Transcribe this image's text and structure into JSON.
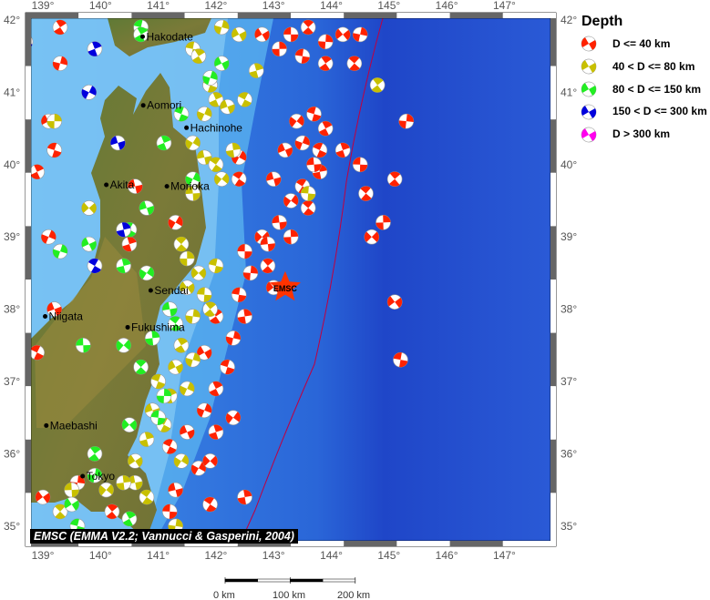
{
  "map": {
    "lon_ticks": [
      "139°",
      "140°",
      "141°",
      "142°",
      "143°",
      "144°",
      "145°",
      "146°",
      "147°"
    ],
    "lat_ticks": [
      "42°",
      "41°",
      "40°",
      "39°",
      "38°",
      "37°",
      "36°",
      "35°"
    ],
    "lon_values": [
      139,
      140,
      141,
      142,
      143,
      144,
      145,
      146,
      147
    ],
    "lat_values": [
      42,
      41,
      40,
      39,
      38,
      37,
      36,
      35
    ],
    "extent": {
      "lon": [
        138.7,
        147.9
      ],
      "lat": [
        34.75,
        42.1
      ]
    },
    "cities": [
      {
        "name": "Hakodate",
        "lon": 140.73,
        "lat": 41.77
      },
      {
        "name": "Aomori",
        "lon": 140.74,
        "lat": 40.82
      },
      {
        "name": "Hachinohe",
        "lon": 141.49,
        "lat": 40.51
      },
      {
        "name": "Akita",
        "lon": 140.1,
        "lat": 39.72
      },
      {
        "name": "Morioka",
        "lon": 141.15,
        "lat": 39.7
      },
      {
        "name": "Sendai",
        "lon": 140.87,
        "lat": 38.26
      },
      {
        "name": "Niigata",
        "lon": 139.04,
        "lat": 37.9
      },
      {
        "name": "Fukushima",
        "lon": 140.47,
        "lat": 37.75
      },
      {
        "name": "Maebashi",
        "lon": 139.06,
        "lat": 36.39
      },
      {
        "name": "Tokyo",
        "lon": 139.69,
        "lat": 35.69
      }
    ],
    "epicenter": {
      "label": "EMSC",
      "lon": 143.2,
      "lat": 38.3,
      "color": "#ff3300"
    },
    "credit": "EMSC (EMMA V2.2; Vannucci & Gasperini, 2004)"
  },
  "legend": {
    "title": "Depth",
    "items": [
      {
        "label": "D <= 40 km",
        "color": "#ff2200"
      },
      {
        "label": "40 < D <= 80 km",
        "color": "#c8c000"
      },
      {
        "label": "80 < D <= 150 km",
        "color": "#22ee22"
      },
      {
        "label": "150 < D <= 300 km",
        "color": "#0000dd"
      },
      {
        "label": "D > 300 km",
        "color": "#ff00ee"
      }
    ]
  },
  "scale": {
    "labels": [
      "0 km",
      "100 km",
      "200 km"
    ]
  },
  "events": [
    [
      143.3,
      41.8,
      0
    ],
    [
      143.6,
      41.9,
      0
    ],
    [
      143.9,
      41.7,
      0
    ],
    [
      144.2,
      41.8,
      0
    ],
    [
      143.5,
      41.5,
      0
    ],
    [
      143.9,
      41.4,
      0
    ],
    [
      144.5,
      41.8,
      0
    ],
    [
      142.8,
      41.8,
      0
    ],
    [
      143.7,
      40.7,
      0
    ],
    [
      143.9,
      40.5,
      0
    ],
    [
      143.5,
      40.3,
      0
    ],
    [
      143.2,
      40.2,
      0
    ],
    [
      143.8,
      40.2,
      0
    ],
    [
      144.2,
      40.2,
      0
    ],
    [
      142.4,
      40.1,
      0
    ],
    [
      143.0,
      39.8,
      0
    ],
    [
      143.5,
      39.7,
      0
    ],
    [
      143.8,
      39.9,
      0
    ],
    [
      143.3,
      39.5,
      0
    ],
    [
      143.1,
      39.2,
      0
    ],
    [
      143.6,
      39.4,
      0
    ],
    [
      143.3,
      39.0,
      0
    ],
    [
      142.8,
      39.0,
      0
    ],
    [
      142.5,
      38.8,
      0
    ],
    [
      142.9,
      38.6,
      0
    ],
    [
      142.6,
      38.5,
      0
    ],
    [
      143.0,
      38.3,
      0
    ],
    [
      142.4,
      38.2,
      0
    ],
    [
      142.0,
      37.9,
      0
    ],
    [
      142.3,
      37.6,
      0
    ],
    [
      141.8,
      37.4,
      0
    ],
    [
      142.2,
      37.2,
      0
    ],
    [
      142.0,
      36.9,
      0
    ],
    [
      141.8,
      36.6,
      0
    ],
    [
      141.5,
      36.3,
      0
    ],
    [
      141.2,
      36.1,
      0
    ],
    [
      142.0,
      36.3,
      0
    ],
    [
      141.7,
      35.8,
      0
    ],
    [
      141.3,
      35.5,
      0
    ],
    [
      141.9,
      35.3,
      0
    ],
    [
      142.5,
      35.4,
      0
    ],
    [
      142.3,
      36.5,
      0
    ],
    [
      142.9,
      38.9,
      0
    ],
    [
      144.6,
      39.6,
      0
    ],
    [
      144.9,
      39.2,
      0
    ],
    [
      144.7,
      39.0,
      0
    ],
    [
      144.5,
      40.0,
      0
    ],
    [
      145.1,
      39.8,
      0
    ],
    [
      145.3,
      40.6,
      0
    ],
    [
      145.1,
      38.1,
      0
    ],
    [
      145.2,
      37.3,
      0
    ],
    [
      139.3,
      41.9,
      0
    ],
    [
      139.3,
      41.4,
      0
    ],
    [
      139.1,
      40.6,
      0
    ],
    [
      139.2,
      40.2,
      0
    ],
    [
      138.9,
      39.9,
      0
    ],
    [
      139.1,
      39.0,
      0
    ],
    [
      139.2,
      38.0,
      0
    ],
    [
      138.9,
      37.4,
      0
    ],
    [
      140.5,
      38.9,
      0
    ],
    [
      141.3,
      39.2,
      0
    ],
    [
      140.6,
      39.7,
      0
    ],
    [
      142.4,
      39.8,
      0
    ],
    [
      142.5,
      37.9,
      0
    ],
    [
      143.4,
      40.6,
      0
    ],
    [
      143.7,
      40.0,
      0
    ],
    [
      144.4,
      41.4,
      0
    ],
    [
      143.1,
      41.6,
      0
    ],
    [
      141.9,
      35.9,
      0
    ],
    [
      141.2,
      35.2,
      0
    ],
    [
      140.2,
      35.2,
      0
    ],
    [
      139.6,
      35.6,
      0
    ],
    [
      139.0,
      35.4,
      0
    ],
    [
      141.6,
      41.6,
      1
    ],
    [
      141.7,
      41.5,
      1
    ],
    [
      142.1,
      41.9,
      1
    ],
    [
      142.4,
      41.8,
      1
    ],
    [
      141.9,
      41.1,
      1
    ],
    [
      142.0,
      40.9,
      1
    ],
    [
      141.8,
      40.7,
      1
    ],
    [
      142.2,
      40.8,
      1
    ],
    [
      142.5,
      40.9,
      1
    ],
    [
      142.7,
      41.3,
      1
    ],
    [
      141.6,
      40.3,
      1
    ],
    [
      141.8,
      40.1,
      1
    ],
    [
      142.0,
      40.0,
      1
    ],
    [
      142.3,
      40.2,
      1
    ],
    [
      142.1,
      39.8,
      1
    ],
    [
      141.6,
      39.6,
      1
    ],
    [
      141.4,
      38.9,
      1
    ],
    [
      141.5,
      38.7,
      1
    ],
    [
      141.7,
      38.5,
      1
    ],
    [
      141.8,
      38.2,
      1
    ],
    [
      141.9,
      38.0,
      1
    ],
    [
      141.6,
      37.9,
      1
    ],
    [
      141.5,
      38.3,
      1
    ],
    [
      142.0,
      38.6,
      1
    ],
    [
      141.4,
      37.5,
      1
    ],
    [
      141.6,
      37.3,
      1
    ],
    [
      141.3,
      37.2,
      1
    ],
    [
      141.0,
      37.0,
      1
    ],
    [
      141.2,
      36.8,
      1
    ],
    [
      141.5,
      36.9,
      1
    ],
    [
      140.9,
      36.6,
      1
    ],
    [
      141.1,
      36.4,
      1
    ],
    [
      140.8,
      36.2,
      1
    ],
    [
      141.4,
      35.9,
      1
    ],
    [
      140.6,
      35.6,
      1
    ],
    [
      140.8,
      35.4,
      1
    ],
    [
      140.4,
      35.6,
      1
    ],
    [
      140.1,
      35.5,
      1
    ],
    [
      139.5,
      35.5,
      1
    ],
    [
      139.3,
      35.2,
      1
    ],
    [
      139.2,
      40.6,
      1
    ],
    [
      139.8,
      39.4,
      1
    ],
    [
      143.6,
      39.6,
      1
    ],
    [
      144.8,
      41.1,
      1
    ],
    [
      141.3,
      35.0,
      1
    ],
    [
      140.6,
      35.9,
      1
    ],
    [
      140.7,
      41.9,
      2
    ],
    [
      140.7,
      41.8,
      2
    ],
    [
      141.9,
      41.2,
      2
    ],
    [
      142.1,
      41.4,
      2
    ],
    [
      141.4,
      40.7,
      2
    ],
    [
      141.1,
      40.3,
      2
    ],
    [
      141.6,
      39.8,
      2
    ],
    [
      140.8,
      39.4,
      2
    ],
    [
      140.5,
      39.1,
      2
    ],
    [
      140.4,
      38.6,
      2
    ],
    [
      140.8,
      38.5,
      2
    ],
    [
      141.2,
      38.0,
      2
    ],
    [
      141.3,
      37.8,
      2
    ],
    [
      140.9,
      37.6,
      2
    ],
    [
      140.4,
      37.5,
      2
    ],
    [
      139.7,
      37.5,
      2
    ],
    [
      140.7,
      37.2,
      2
    ],
    [
      141.1,
      36.8,
      2
    ],
    [
      140.5,
      36.4,
      2
    ],
    [
      141.0,
      36.5,
      2
    ],
    [
      139.9,
      36.0,
      2
    ],
    [
      139.9,
      35.7,
      2
    ],
    [
      139.5,
      35.3,
      2
    ],
    [
      139.6,
      35.0,
      2
    ],
    [
      140.5,
      35.1,
      2
    ],
    [
      139.3,
      38.8,
      2
    ],
    [
      139.8,
      38.9,
      2
    ],
    [
      138.7,
      41.7,
      3
    ],
    [
      139.9,
      41.6,
      3
    ],
    [
      139.8,
      41.0,
      3
    ],
    [
      140.3,
      40.3,
      3
    ],
    [
      139.9,
      38.6,
      3
    ],
    [
      140.4,
      39.1,
      3
    ]
  ]
}
